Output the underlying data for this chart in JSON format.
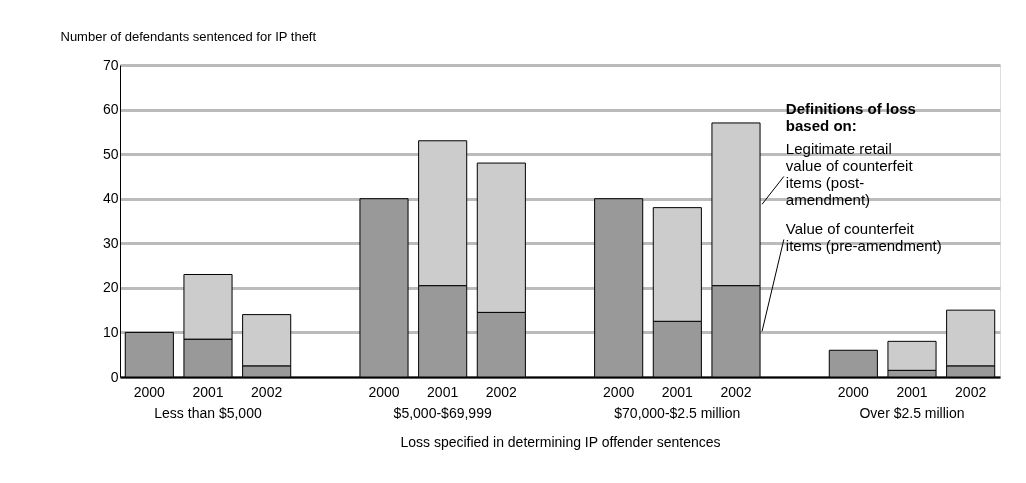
{
  "chart_data": {
    "type": "bar",
    "stacked": true,
    "ylabel": "Number of defendants sentenced for IP theft",
    "xlabel": "Loss specified in determining IP offender sentences",
    "legend_title": "Definitions of loss based on:",
    "categories": [
      "2000",
      "2001",
      "2002",
      "2000",
      "2001",
      "2002",
      "2000",
      "2001",
      "2002",
      "2000",
      "2001",
      "2002"
    ],
    "annotations": [
      "Less than $5,000",
      "$5,000-$69,999",
      "$70,000-$2.5 million",
      "Over $2.5 million"
    ],
    "series": [
      {
        "name": "Value of counterfeit items (pre-amendment)",
        "color": "#999999",
        "values": [
          10,
          8.5,
          2.5,
          40,
          20.5,
          14.5,
          40,
          12.5,
          20.5,
          6,
          1.5,
          2.5
        ]
      },
      {
        "name": "Legitimate retail value of counterfeit items (post-amendment)",
        "color": "#cccccc",
        "values": [
          null,
          14.5,
          11.5,
          null,
          32.5,
          33.5,
          null,
          25.5,
          36.5,
          null,
          6.5,
          12.5
        ]
      }
    ],
    "ylim": [
      0,
      70
    ],
    "yticks": [
      0,
      10,
      20,
      30,
      40,
      50,
      60,
      70
    ],
    "grid": "y",
    "legend": "right"
  }
}
